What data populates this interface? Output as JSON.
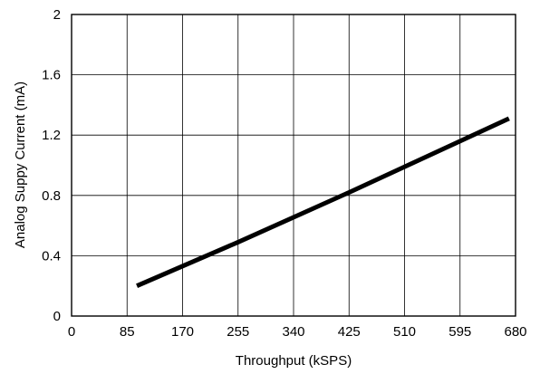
{
  "chart_data": {
    "type": "line",
    "title": "",
    "xlabel": "Throughput (kSPS)",
    "ylabel": "Analog Suppy Current (mA)",
    "xlim": [
      0,
      680
    ],
    "ylim": [
      0,
      2
    ],
    "x_ticks": [
      0,
      85,
      170,
      255,
      340,
      425,
      510,
      595,
      680
    ],
    "y_ticks": [
      0,
      0.4,
      0.8,
      1.2,
      1.6,
      2
    ],
    "x_tick_labels": [
      "0",
      "85",
      "170",
      "255",
      "340",
      "425",
      "510",
      "595",
      "680"
    ],
    "y_tick_labels": [
      "0",
      "0.4",
      "0.8",
      "1.2",
      "1.6",
      "2"
    ],
    "grid": true,
    "series": [
      {
        "name": "",
        "color": "#000000",
        "x": [
          100,
          255,
          425,
          595,
          670
        ],
        "y": [
          0.2,
          0.49,
          0.82,
          1.16,
          1.31
        ]
      }
    ]
  }
}
